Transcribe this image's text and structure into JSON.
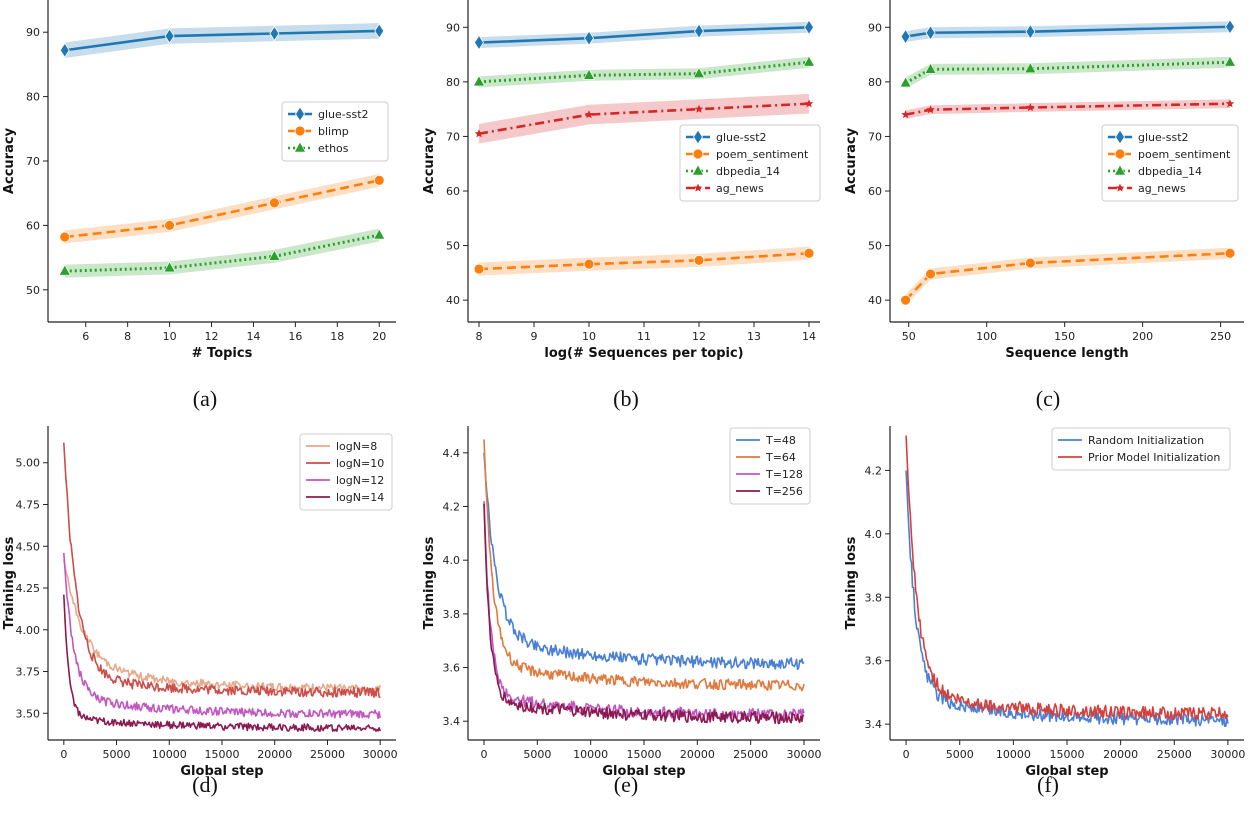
{
  "colors": {
    "blue": "#1f77b4",
    "orange": "#ff7f0e",
    "green": "#2ca02c",
    "red": "#d62728",
    "d_logN8": "#e8a98a",
    "d_logN10": "#cd4d4b",
    "d_logN12": "#c257c2",
    "d_logN14": "#8b1a50",
    "e_T48": "#4a7fd6",
    "e_T64": "#e07a3f",
    "e_T128": "#c257c2",
    "e_T256": "#8b1a50",
    "f_random": "#4a7fd6",
    "f_prior": "#d6403c"
  },
  "chart_data": [
    {
      "id": "a",
      "caption": "(a)",
      "type": "line",
      "xlabel": "# Topics",
      "ylabel": "Accuracy",
      "xlim": [
        4.2,
        20.8
      ],
      "ylim": [
        45,
        95
      ],
      "xticks": [
        6,
        8,
        10,
        12,
        14,
        16,
        18,
        20
      ],
      "yticks": [
        50,
        60,
        70,
        80,
        90
      ],
      "legend_position": "center-right",
      "series": [
        {
          "name": "glue-sst2",
          "color": "blue",
          "dash": "solid",
          "marker": "diamond",
          "band": 1.2,
          "x": [
            5,
            10,
            15,
            20
          ],
          "y": [
            87.2,
            89.4,
            89.8,
            90.2
          ]
        },
        {
          "name": "blimp",
          "color": "orange",
          "dash": "dashed",
          "marker": "circle",
          "band": 1.0,
          "x": [
            5,
            10,
            15,
            20
          ],
          "y": [
            58.2,
            60.0,
            63.5,
            67.0
          ]
        },
        {
          "name": "ethos",
          "color": "green",
          "dash": "dotted",
          "marker": "triangle",
          "band": 1.0,
          "x": [
            5,
            10,
            15,
            20
          ],
          "y": [
            52.9,
            53.4,
            55.2,
            58.5
          ]
        }
      ]
    },
    {
      "id": "b",
      "caption": "(b)",
      "type": "line",
      "xlabel": "log(# Sequences per topic)",
      "ylabel": "Accuracy",
      "xlim": [
        7.8,
        14.2
      ],
      "ylim": [
        36,
        95
      ],
      "xticks": [
        8,
        9,
        10,
        11,
        12,
        13,
        14
      ],
      "yticks": [
        40,
        50,
        60,
        70,
        80,
        90
      ],
      "legend_position": "center-right",
      "series": [
        {
          "name": "glue-sst2",
          "color": "blue",
          "dash": "solid",
          "marker": "diamond",
          "band": 1.0,
          "x": [
            8,
            10,
            12,
            14
          ],
          "y": [
            87.2,
            88.0,
            89.3,
            90.0
          ]
        },
        {
          "name": "poem_sentiment",
          "color": "orange",
          "dash": "dashed",
          "marker": "circle",
          "band": 1.2,
          "x": [
            8,
            10,
            12,
            14
          ],
          "y": [
            45.7,
            46.6,
            47.3,
            48.6
          ]
        },
        {
          "name": "dbpedia_14",
          "color": "green",
          "dash": "dotted",
          "marker": "triangle",
          "band": 1.0,
          "x": [
            8,
            10,
            12,
            14
          ],
          "y": [
            80.0,
            81.2,
            81.5,
            83.6
          ]
        },
        {
          "name": "ag_news",
          "color": "red",
          "dash": "dashdot",
          "marker": "star",
          "band": 1.8,
          "x": [
            8,
            10,
            12,
            14
          ],
          "y": [
            70.5,
            74.0,
            75.0,
            76.0
          ]
        }
      ]
    },
    {
      "id": "c",
      "caption": "(c)",
      "type": "line",
      "xlabel": "Sequence length",
      "ylabel": "Accuracy",
      "xlim": [
        38,
        265
      ],
      "ylim": [
        36,
        95
      ],
      "xticks": [
        50,
        100,
        150,
        200,
        250
      ],
      "yticks": [
        40,
        50,
        60,
        70,
        80,
        90
      ],
      "legend_position": "center-right",
      "series": [
        {
          "name": "glue-sst2",
          "color": "blue",
          "dash": "solid",
          "marker": "diamond",
          "band": 1.0,
          "x": [
            48,
            64,
            128,
            256
          ],
          "y": [
            88.3,
            89.0,
            89.2,
            90.1
          ]
        },
        {
          "name": "poem_sentiment",
          "color": "orange",
          "dash": "dashed",
          "marker": "circle",
          "band": 1.0,
          "x": [
            48,
            64,
            128,
            256
          ],
          "y": [
            40.0,
            44.8,
            46.8,
            48.6
          ]
        },
        {
          "name": "dbpedia_14",
          "color": "green",
          "dash": "dotted",
          "marker": "triangle",
          "band": 1.0,
          "x": [
            48,
            64,
            128,
            256
          ],
          "y": [
            79.8,
            82.3,
            82.4,
            83.6
          ]
        },
        {
          "name": "ag_news",
          "color": "red",
          "dash": "dashdot",
          "marker": "star",
          "band": 0.8,
          "x": [
            48,
            64,
            128,
            256
          ],
          "y": [
            74.0,
            74.9,
            75.3,
            76.0
          ]
        }
      ]
    },
    {
      "id": "d",
      "caption": "(d)",
      "type": "line",
      "xlabel": "Global step",
      "ylabel": "Training loss",
      "xlim": [
        -1500,
        31500
      ],
      "ylim": [
        3.34,
        5.22
      ],
      "xticks": [
        0,
        5000,
        10000,
        15000,
        20000,
        25000,
        30000
      ],
      "yticks": [
        3.5,
        3.75,
        4.0,
        4.25,
        4.5,
        4.75,
        5.0
      ],
      "ytick_labels": [
        "3.50",
        "3.75",
        "4.00",
        "4.25",
        "4.50",
        "4.75",
        "5.00"
      ],
      "legend_position": "top-right",
      "series": [
        {
          "name": "logN=8",
          "color": "d_logN8",
          "curve": {
            "start": 4.42,
            "peak": 4.42,
            "end": 3.64,
            "mid": 3.8,
            "tau": 1800,
            "noise": 0.025
          }
        },
        {
          "name": "logN=10",
          "color": "d_logN10",
          "curve": {
            "start": 5.12,
            "peak": 5.12,
            "end": 3.62,
            "mid": 3.72,
            "tau": 1200,
            "noise": 0.03
          }
        },
        {
          "name": "logN=12",
          "color": "d_logN12",
          "curve": {
            "start": 4.46,
            "peak": 4.46,
            "end": 3.49,
            "mid": 3.6,
            "tau": 900,
            "noise": 0.025
          }
        },
        {
          "name": "logN=14",
          "color": "d_logN14",
          "curve": {
            "start": 4.21,
            "peak": 4.21,
            "end": 3.41,
            "mid": 3.47,
            "tau": 500,
            "noise": 0.022
          }
        }
      ]
    },
    {
      "id": "e",
      "caption": "(e)",
      "type": "line",
      "xlabel": "Global step",
      "ylabel": "Training loss",
      "xlim": [
        -1500,
        31500
      ],
      "ylim": [
        3.33,
        4.5
      ],
      "xticks": [
        0,
        5000,
        10000,
        15000,
        20000,
        25000,
        30000
      ],
      "yticks": [
        3.4,
        3.6,
        3.8,
        4.0,
        4.2,
        4.4
      ],
      "ytick_labels": [
        "3.4",
        "3.6",
        "3.8",
        "4.0",
        "4.2",
        "4.4"
      ],
      "legend_position": "top-right",
      "series": [
        {
          "name": "T=48",
          "color": "e_T48",
          "curve": {
            "start": 4.4,
            "peak": 4.4,
            "end": 3.61,
            "mid": 3.72,
            "tau": 1100,
            "noise": 0.022
          }
        },
        {
          "name": "T=64",
          "color": "e_T64",
          "curve": {
            "start": 4.45,
            "peak": 4.45,
            "end": 3.53,
            "mid": 3.62,
            "tau": 800,
            "noise": 0.02
          }
        },
        {
          "name": "T=128",
          "color": "e_T128",
          "curve": {
            "start": 4.22,
            "peak": 4.22,
            "end": 3.42,
            "mid": 3.5,
            "tau": 600,
            "noise": 0.022
          }
        },
        {
          "name": "T=256",
          "color": "e_T256",
          "curve": {
            "start": 4.21,
            "peak": 4.21,
            "end": 3.41,
            "mid": 3.48,
            "tau": 550,
            "noise": 0.022
          }
        }
      ]
    },
    {
      "id": "f",
      "caption": "(f)",
      "type": "line",
      "xlabel": "Global step",
      "ylabel": "Training loss",
      "xlim": [
        -1500,
        31500
      ],
      "ylim": [
        3.35,
        4.34
      ],
      "xticks": [
        0,
        5000,
        10000,
        15000,
        20000,
        25000,
        30000
      ],
      "yticks": [
        3.4,
        3.6,
        3.8,
        4.0,
        4.2
      ],
      "ytick_labels": [
        "3.4",
        "3.6",
        "3.8",
        "4.0",
        "4.2"
      ],
      "legend_position": "top-right",
      "series": [
        {
          "name": "Random Initialization",
          "color": "f_random",
          "curve": {
            "start": 4.2,
            "peak": 4.2,
            "end": 3.41,
            "mid": 3.49,
            "tau": 900,
            "noise": 0.02
          }
        },
        {
          "name": "Prior Model Initialization",
          "color": "f_prior",
          "curve": {
            "start": 4.31,
            "peak": 4.31,
            "end": 3.43,
            "mid": 3.5,
            "tau": 1000,
            "noise": 0.02
          }
        }
      ]
    }
  ]
}
